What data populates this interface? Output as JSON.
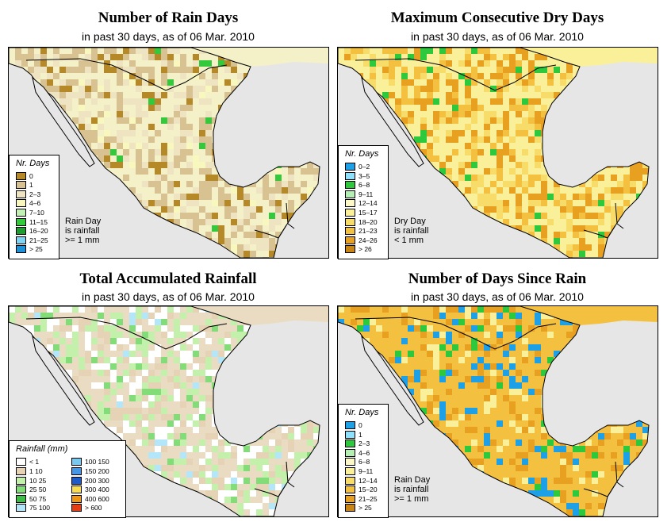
{
  "panels": [
    {
      "id": "rain-days",
      "title": "Number of Rain Days",
      "subtitle": "in past 30 days, as of  06 Mar. 2010",
      "legend_title": "Nr. Days",
      "legend_columns": 1,
      "legend_items": [
        {
          "label": "0",
          "color": "#b58928"
        },
        {
          "label": "1",
          "color": "#d8c291"
        },
        {
          "label": "2–3",
          "color": "#efe4c2"
        },
        {
          "label": "4–6",
          "color": "#f7f7be"
        },
        {
          "label": "7–10",
          "color": "#c3f0b4"
        },
        {
          "label": "11–15",
          "color": "#34c93c"
        },
        {
          "label": "16–20",
          "color": "#1e9e2e"
        },
        {
          "label": "21–25",
          "color": "#7fd4f4"
        },
        {
          "label": "> 25",
          "color": "#1e90d6"
        }
      ],
      "note": [
        "Rain Day",
        "is rainfall",
        ">= 1 mm"
      ],
      "base_color": "#f4f1c8",
      "weights": [
        0.18,
        0.42,
        0.3,
        0.08,
        0.02
      ]
    },
    {
      "id": "max-dry-days",
      "title": "Maximum Consecutive Dry Days",
      "subtitle": "in past 30 days, as of  06 Mar. 2010",
      "legend_title": "Nr. Days",
      "legend_columns": 1,
      "legend_items": [
        {
          "label": "0–2",
          "color": "#1ea0e6"
        },
        {
          "label": "3–5",
          "color": "#8fe0fa"
        },
        {
          "label": "6–8",
          "color": "#2ec83c"
        },
        {
          "label": "9–11",
          "color": "#b4f0b4"
        },
        {
          "label": "12–14",
          "color": "#fcf8c8"
        },
        {
          "label": "15–17",
          "color": "#fbf09a"
        },
        {
          "label": "18–20",
          "color": "#f8dc6a"
        },
        {
          "label": "21–23",
          "color": "#f4c040"
        },
        {
          "label": "24–26",
          "color": "#e8a020"
        },
        {
          "label": "> 26",
          "color": "#c88414"
        }
      ],
      "note": [
        "Dry Day",
        "is rainfall",
        "< 1 mm"
      ],
      "base_color": "#fbf09a",
      "weights": [
        0.3,
        0.25,
        0.25,
        0.12,
        0.08
      ]
    },
    {
      "id": "total-rainfall",
      "title": "Total Accumulated Rainfall",
      "subtitle": "in past 30 days, as of  06 Mar. 2010",
      "legend_title": "Rainfall (mm)",
      "legend_columns": 2,
      "legend_items": [
        {
          "label": "< 1",
          "color": "#ffffff"
        },
        {
          "label": "1    10",
          "color": "#e6d2b4"
        },
        {
          "label": "10    25",
          "color": "#c3f0aa"
        },
        {
          "label": "25    50",
          "color": "#82dc78"
        },
        {
          "label": "50    75",
          "color": "#3cbe46"
        },
        {
          "label": "75    100",
          "color": "#b4e6fa"
        },
        {
          "label": "100    150",
          "color": "#78c8f0"
        },
        {
          "label": "150    200",
          "color": "#4696e6"
        },
        {
          "label": "200    300",
          "color": "#1e5ac8"
        },
        {
          "label": "300    400",
          "color": "#fadc50"
        },
        {
          "label": "400    600",
          "color": "#f09614"
        },
        {
          "label": "> 600",
          "color": "#e63c14"
        }
      ],
      "note": [],
      "base_color": "#e9dcc2",
      "weights": [
        0.25,
        0.3,
        0.3,
        0.1,
        0.05
      ]
    },
    {
      "id": "days-since-rain",
      "title": "Number of Days Since Rain",
      "subtitle": "in past 30 days, as of  06 Mar. 2010",
      "legend_title": "Nr. Days",
      "legend_columns": 1,
      "legend_items": [
        {
          "label": "0",
          "color": "#1ea0e6"
        },
        {
          "label": "1",
          "color": "#8fe0fa"
        },
        {
          "label": "2–3",
          "color": "#2ec83c"
        },
        {
          "label": "4–6",
          "color": "#b4f0b4"
        },
        {
          "label": "6–8",
          "color": "#fcf8c8"
        },
        {
          "label": "9–11",
          "color": "#fbf09a"
        },
        {
          "label": "12–14",
          "color": "#f8dc6a"
        },
        {
          "label": "15–20",
          "color": "#f4c040"
        },
        {
          "label": "21–25",
          "color": "#e8a020"
        },
        {
          "label": "> 25",
          "color": "#c88414"
        }
      ],
      "note": [
        "Rain Day",
        "is rainfall",
        ">= 1 mm"
      ],
      "base_color": "#f4c040",
      "weights": [
        0.4,
        0.25,
        0.15,
        0.12,
        0.08
      ]
    }
  ],
  "map_colors": {
    "ocean": "#e6e6e6",
    "border": "#000000"
  }
}
